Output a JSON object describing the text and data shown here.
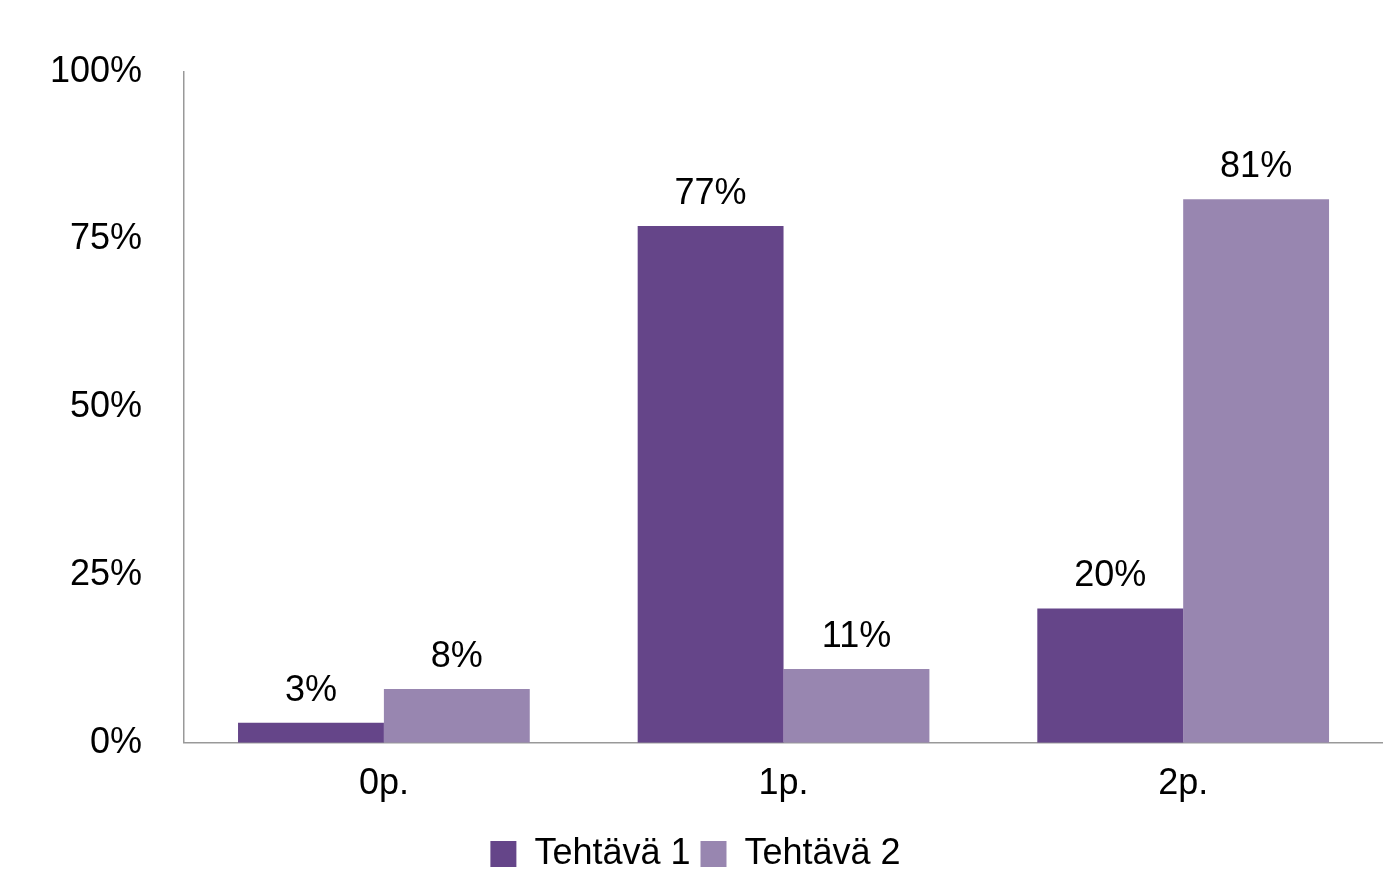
{
  "chart_data": {
    "type": "bar",
    "categories": [
      "0p.",
      "1p.",
      "2p."
    ],
    "series": [
      {
        "name": "Tehtävä 1",
        "color": "#654589",
        "values": [
          3,
          77,
          20
        ],
        "value_labels": [
          "3%",
          "77%",
          "20%"
        ]
      },
      {
        "name": "Tehtävä 2",
        "color": "#9886b0",
        "values": [
          8,
          11,
          81
        ],
        "value_labels": [
          "8%",
          "11%",
          "81%"
        ]
      }
    ],
    "ylim": [
      0,
      100
    ],
    "yticks": [
      {
        "value": 0,
        "label": "0%"
      },
      {
        "value": 25,
        "label": "25%"
      },
      {
        "value": 50,
        "label": "50%"
      },
      {
        "value": 75,
        "label": "75%"
      },
      {
        "value": 100,
        "label": "100%"
      }
    ],
    "grid": false,
    "legend": "bottom"
  }
}
